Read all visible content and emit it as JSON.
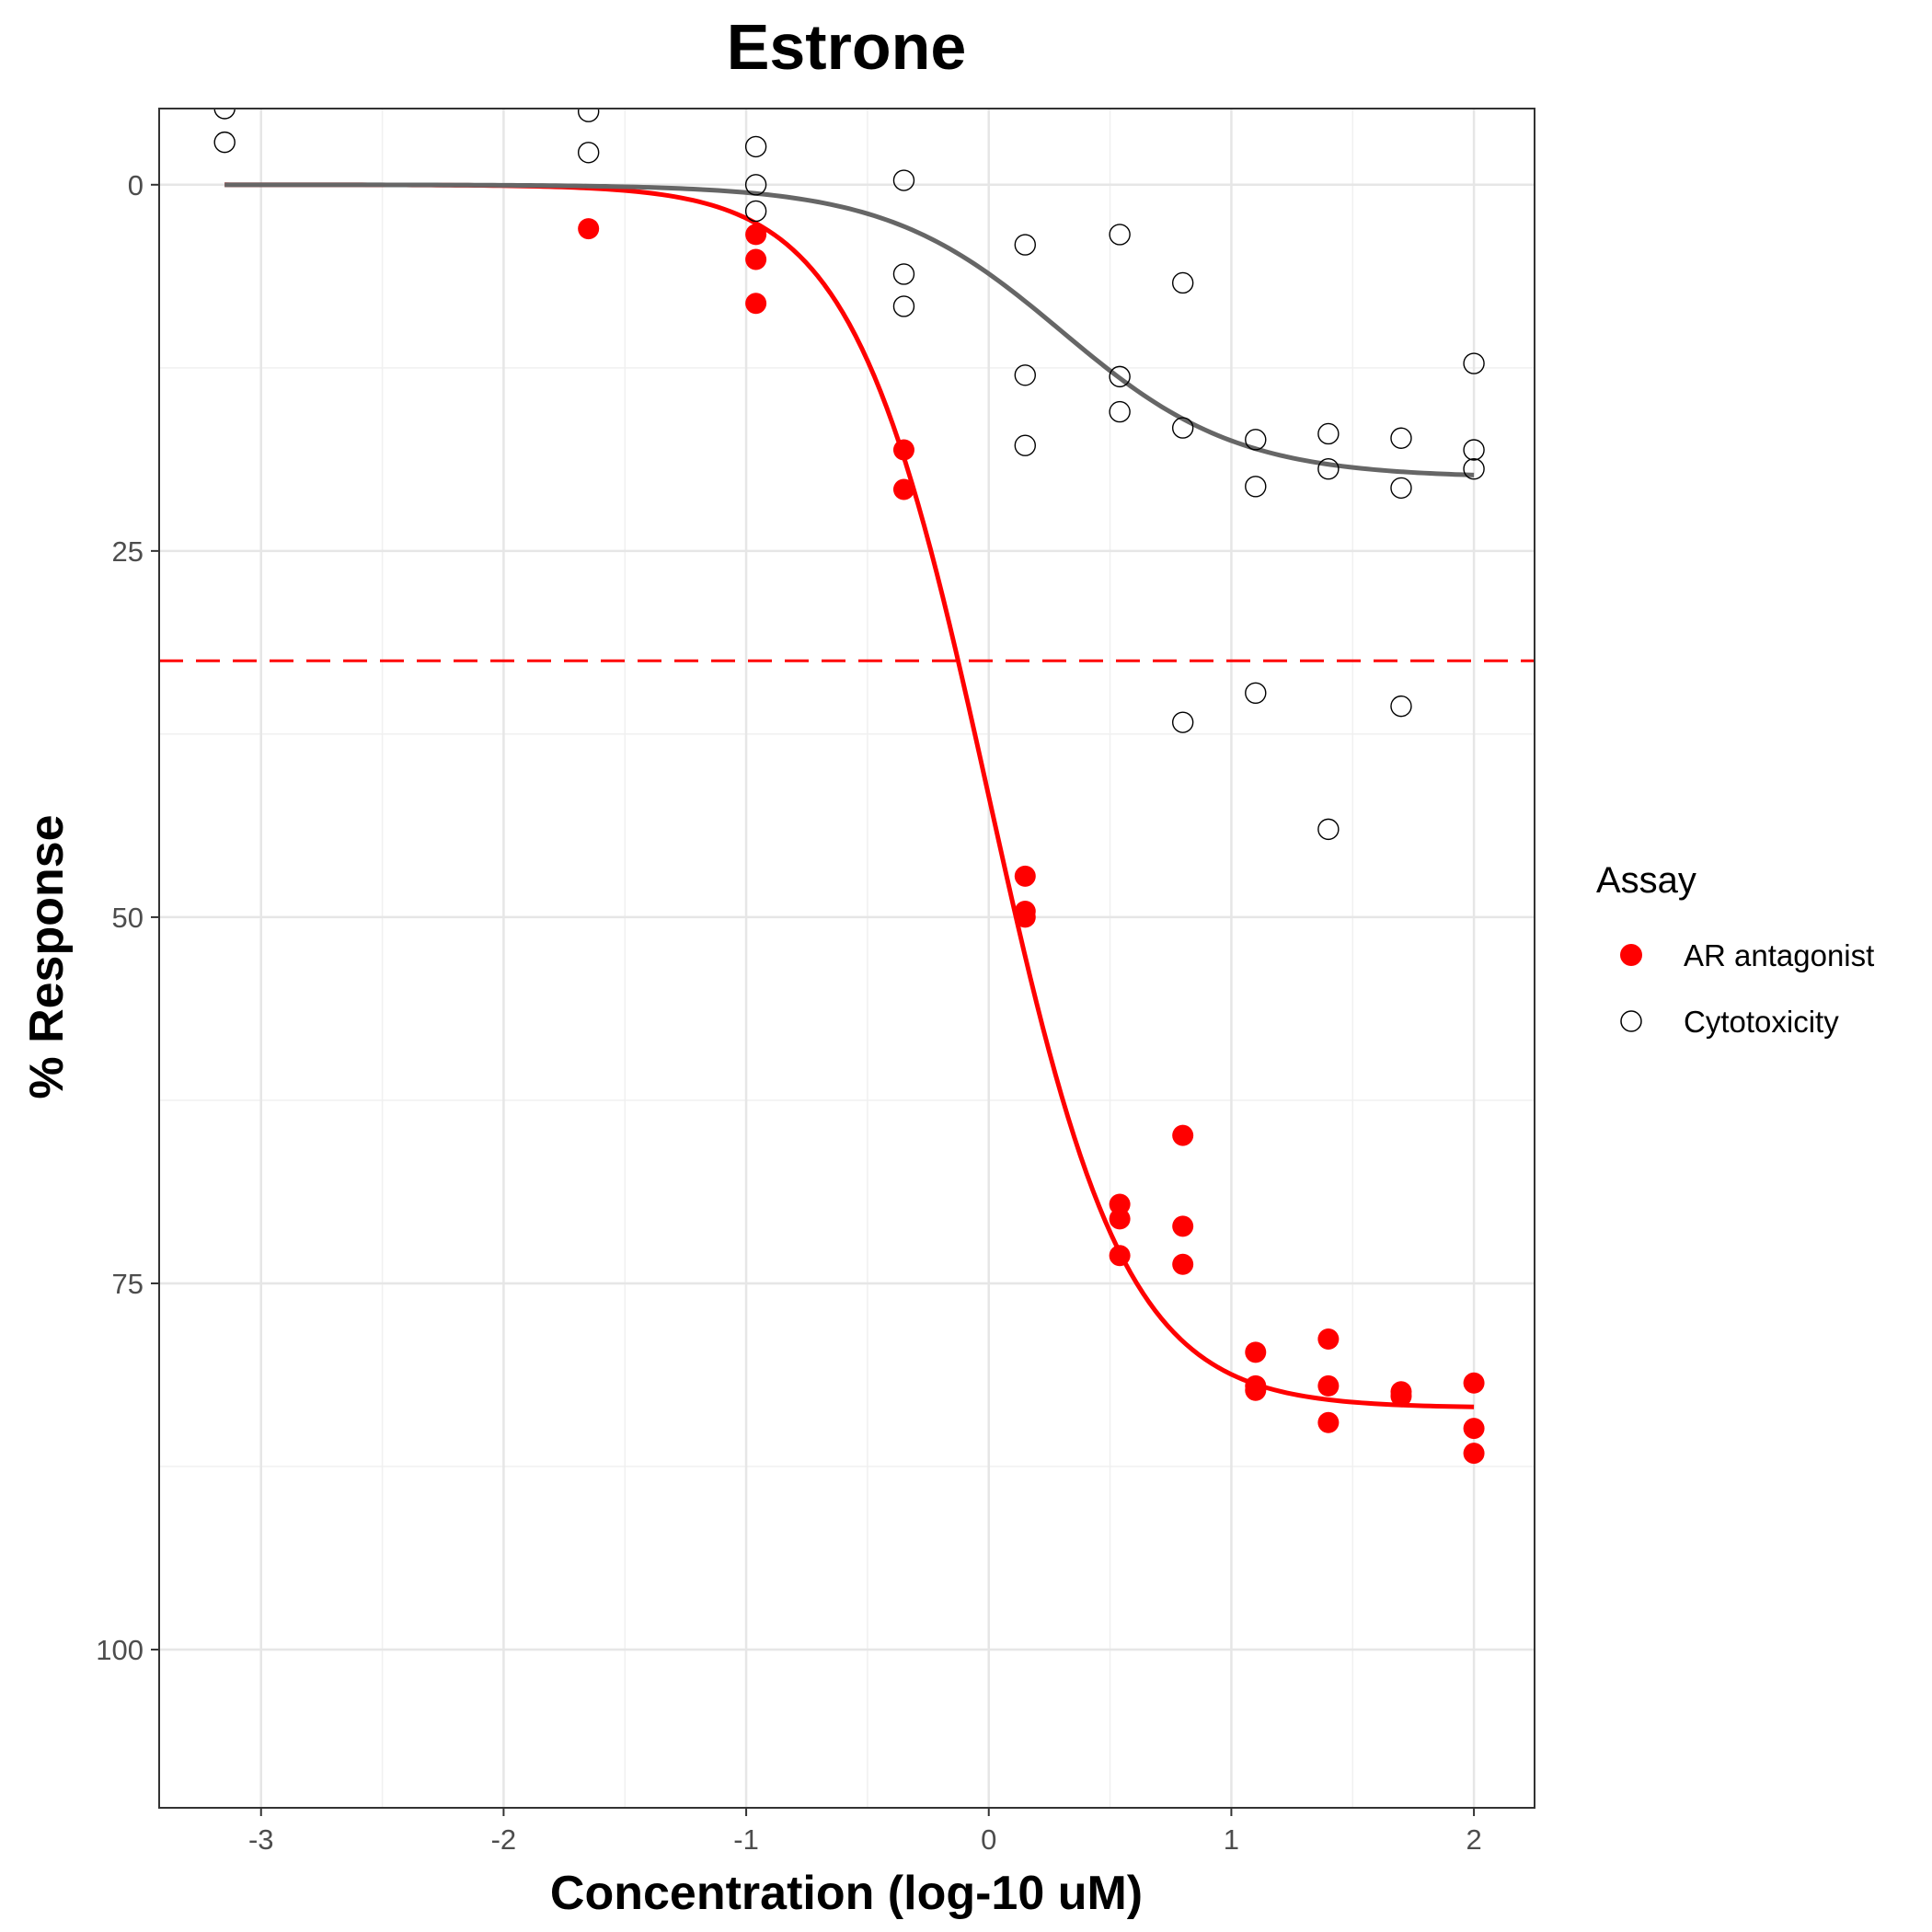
{
  "chart_data": {
    "type": "scatter",
    "title": "Estrone",
    "xlabel": "Concentration (log-10 uM)",
    "ylabel": "% Response",
    "xlim": [
      -3.42,
      2.25
    ],
    "ylim": [
      110.8,
      -5.2
    ],
    "y_reversed": true,
    "grid": true,
    "x_ticks": [
      -3,
      -2,
      -1,
      0,
      1,
      2
    ],
    "x_tick_labels": [
      "-3",
      "-2",
      "-1",
      "0",
      "1",
      "2"
    ],
    "y_ticks": [
      0,
      25,
      50,
      75,
      100
    ],
    "y_tick_labels": [
      "0",
      "25",
      "50",
      "75",
      "100"
    ],
    "legend": {
      "title": "Assay",
      "position": "right",
      "entries": [
        "AR antagonist",
        "Cytotoxicity"
      ]
    },
    "threshold_line": {
      "y": 32.5,
      "color": "#ff0000",
      "style": "dashed"
    },
    "series": [
      {
        "name": "AR antagonist",
        "color": "#ff0000",
        "marker": "filled-circle",
        "points": [
          [
            -1.65,
            3.0
          ],
          [
            -0.96,
            3.4
          ],
          [
            -0.96,
            5.1
          ],
          [
            -0.96,
            8.1
          ],
          [
            -0.35,
            18.1
          ],
          [
            -0.35,
            20.8
          ],
          [
            0.15,
            47.2
          ],
          [
            0.15,
            49.6
          ],
          [
            0.15,
            50.0
          ],
          [
            0.54,
            69.6
          ],
          [
            0.54,
            70.6
          ],
          [
            0.54,
            73.1
          ],
          [
            0.8,
            64.9
          ],
          [
            0.8,
            71.1
          ],
          [
            0.8,
            73.7
          ],
          [
            1.1,
            79.7
          ],
          [
            1.1,
            82.0
          ],
          [
            1.1,
            82.3
          ],
          [
            1.4,
            78.8
          ],
          [
            1.4,
            82.0
          ],
          [
            1.4,
            84.5
          ],
          [
            1.7,
            82.4
          ],
          [
            1.7,
            82.7
          ],
          [
            2.0,
            81.8
          ],
          [
            2.0,
            84.9
          ],
          [
            2.0,
            86.6
          ]
        ],
        "fit": {
          "top": 0,
          "bottom": 83.5,
          "log_ac50": 0.0,
          "hill": 1.55,
          "x_range": [
            -3.15,
            2.0
          ]
        }
      },
      {
        "name": "Cytotoxicity",
        "color": "#555555",
        "marker": "open-circle",
        "points": [
          [
            -3.15,
            -5.2
          ],
          [
            -3.15,
            -2.9
          ],
          [
            -1.65,
            -5.0
          ],
          [
            -1.65,
            -2.2
          ],
          [
            -0.96,
            -2.6
          ],
          [
            -0.96,
            0.0
          ],
          [
            -0.96,
            1.8
          ],
          [
            -0.35,
            -0.3
          ],
          [
            -0.35,
            6.1
          ],
          [
            -0.35,
            8.3
          ],
          [
            0.15,
            4.1
          ],
          [
            0.15,
            13.0
          ],
          [
            0.15,
            17.8
          ],
          [
            0.54,
            3.4
          ],
          [
            0.54,
            13.1
          ],
          [
            0.54,
            15.5
          ],
          [
            0.8,
            6.7
          ],
          [
            0.8,
            16.6
          ],
          [
            0.8,
            36.7
          ],
          [
            1.1,
            17.4
          ],
          [
            1.1,
            20.6
          ],
          [
            1.1,
            34.7
          ],
          [
            1.4,
            17.0
          ],
          [
            1.4,
            19.4
          ],
          [
            1.4,
            44.0
          ],
          [
            1.7,
            17.3
          ],
          [
            1.7,
            20.7
          ],
          [
            1.7,
            35.6
          ],
          [
            2.0,
            12.2
          ],
          [
            2.0,
            18.1
          ],
          [
            2.0,
            19.4
          ]
        ],
        "fit": {
          "top": 0,
          "bottom": 20.0,
          "log_ac50": 0.3,
          "hill": 1.2,
          "x_range": [
            -3.15,
            2.0
          ]
        }
      }
    ]
  }
}
